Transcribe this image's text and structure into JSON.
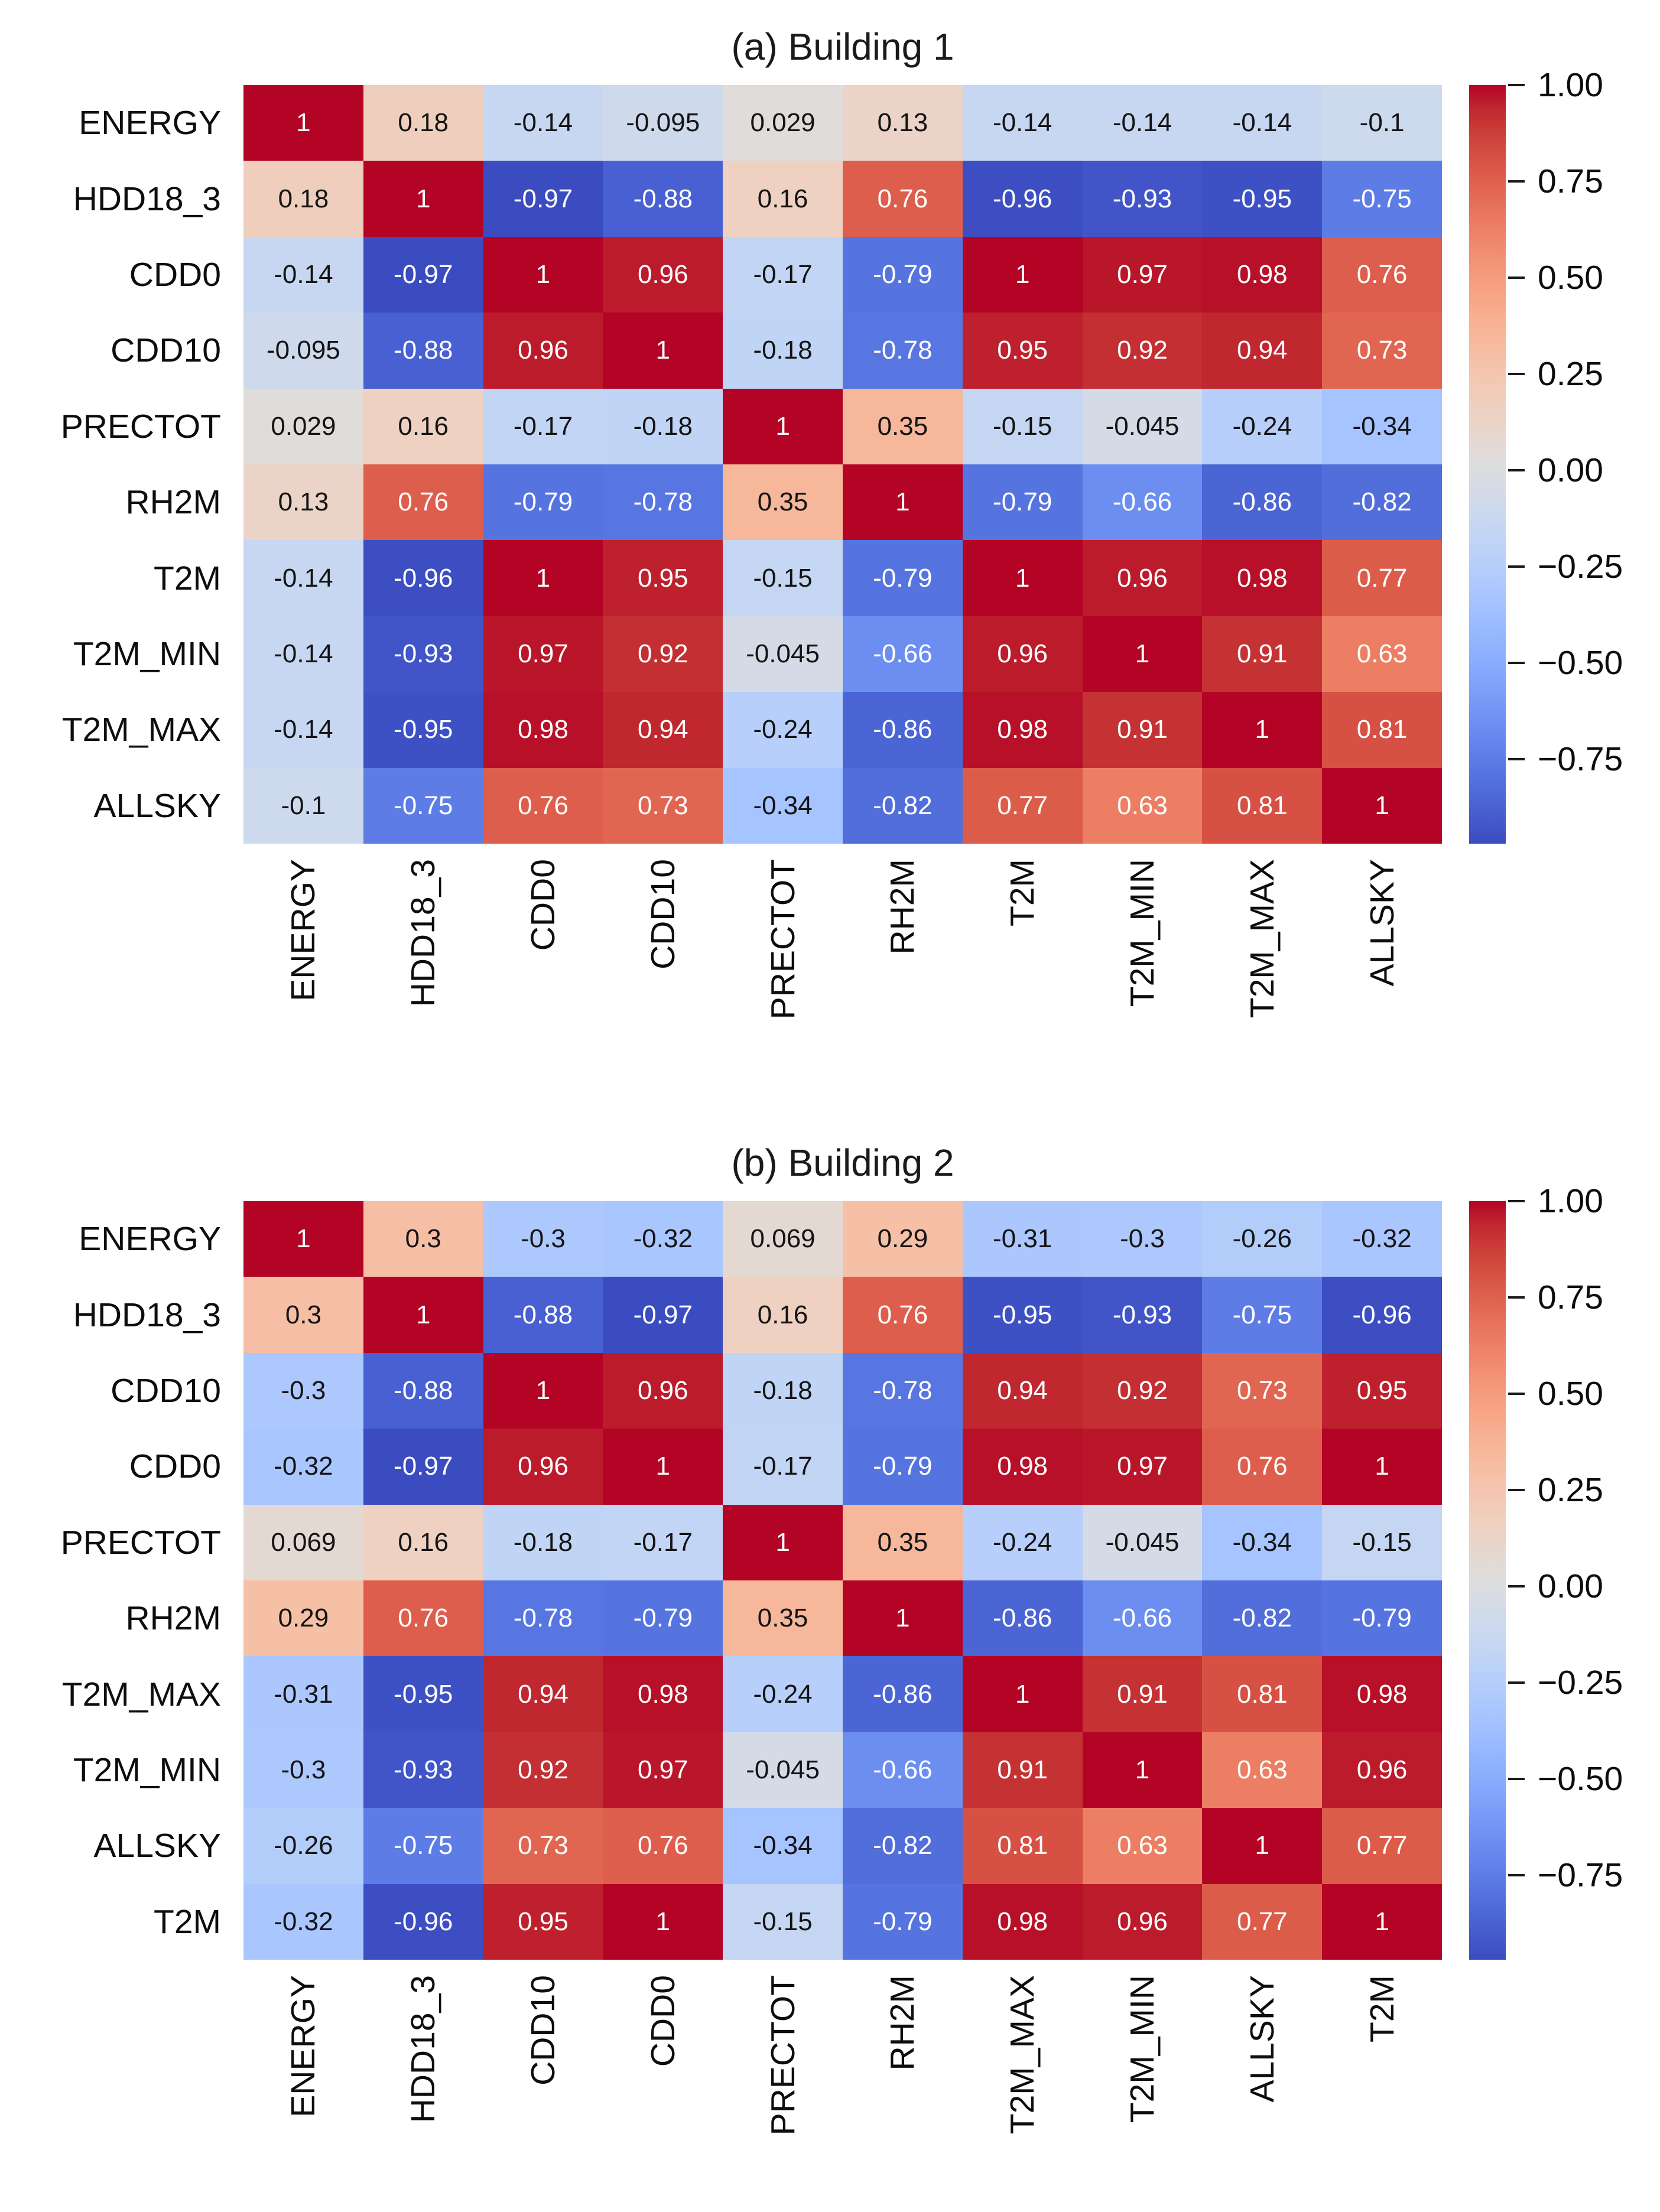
{
  "figure": {
    "background": "#ffffff",
    "axis_text_color": "#0d0d0d",
    "annotation_dark_text": "#141414",
    "annotation_light_text": "#ffffff",
    "colormap": {
      "name": "coolwarm",
      "anchors": [
        [
          59,
          76,
          192
        ],
        [
          68,
          90,
          204
        ],
        [
          77,
          104,
          215
        ],
        [
          87,
          117,
          225
        ],
        [
          98,
          130,
          234
        ],
        [
          108,
          142,
          241
        ],
        [
          119,
          154,
          247
        ],
        [
          130,
          165,
          251
        ],
        [
          141,
          176,
          254
        ],
        [
          152,
          185,
          255
        ],
        [
          163,
          194,
          255
        ],
        [
          174,
          201,
          253
        ],
        [
          184,
          208,
          249
        ],
        [
          194,
          213,
          244
        ],
        [
          204,
          217,
          238
        ],
        [
          213,
          219,
          230
        ],
        [
          221,
          221,
          221
        ],
        [
          229,
          216,
          209
        ],
        [
          236,
          211,
          197
        ],
        [
          241,
          204,
          185
        ],
        [
          245,
          196,
          173
        ],
        [
          247,
          187,
          160
        ],
        [
          247,
          177,
          148
        ],
        [
          247,
          166,
          135
        ],
        [
          244,
          154,
          123
        ],
        [
          241,
          141,
          111
        ],
        [
          236,
          127,
          99
        ],
        [
          229,
          112,
          88
        ],
        [
          222,
          96,
          77
        ],
        [
          213,
          80,
          66
        ],
        [
          203,
          62,
          56
        ],
        [
          192,
          40,
          47
        ],
        [
          180,
          4,
          38
        ]
      ]
    }
  },
  "chart_data": [
    {
      "type": "heatmap",
      "title": "(a) Building 1",
      "labels": [
        "ENERGY",
        "HDD18_3",
        "CDD0",
        "CDD10",
        "PRECTOT",
        "RH2M",
        "T2M",
        "T2M_MIN",
        "T2M_MAX",
        "ALLSKY"
      ],
      "matrix": [
        [
          1,
          0.18,
          -0.14,
          -0.095,
          0.029,
          0.13,
          -0.14,
          -0.14,
          -0.14,
          -0.1
        ],
        [
          0.18,
          1,
          -0.97,
          -0.88,
          0.16,
          0.76,
          -0.96,
          -0.93,
          -0.95,
          -0.75
        ],
        [
          -0.14,
          -0.97,
          1,
          0.96,
          -0.17,
          -0.79,
          1,
          0.97,
          0.98,
          0.76
        ],
        [
          -0.095,
          -0.88,
          0.96,
          1,
          -0.18,
          -0.78,
          0.95,
          0.92,
          0.94,
          0.73
        ],
        [
          0.029,
          0.16,
          -0.17,
          -0.18,
          1,
          0.35,
          -0.15,
          -0.045,
          -0.24,
          -0.34
        ],
        [
          0.13,
          0.76,
          -0.79,
          -0.78,
          0.35,
          1,
          -0.79,
          -0.66,
          -0.86,
          -0.82
        ],
        [
          -0.14,
          -0.96,
          1,
          0.95,
          -0.15,
          -0.79,
          1,
          0.96,
          0.98,
          0.77
        ],
        [
          -0.14,
          -0.93,
          0.97,
          0.92,
          -0.045,
          -0.66,
          0.96,
          1,
          0.91,
          0.63
        ],
        [
          -0.14,
          -0.95,
          0.98,
          0.94,
          -0.24,
          -0.86,
          0.98,
          0.91,
          1,
          0.81
        ],
        [
          -0.1,
          -0.75,
          0.76,
          0.73,
          -0.34,
          -0.82,
          0.77,
          0.63,
          0.81,
          1
        ]
      ],
      "vmin": -0.97,
      "vmax": 1,
      "legend_position": "right",
      "colorbar": {
        "tick_values": [
          1.0,
          0.75,
          0.5,
          0.25,
          0.0,
          -0.25,
          -0.5,
          -0.75
        ],
        "tick_labels": [
          "1.00",
          "0.75",
          "0.50",
          "0.25",
          "0.00",
          "−0.25",
          "−0.50",
          "−0.75"
        ]
      }
    },
    {
      "type": "heatmap",
      "title": "(b) Building 2",
      "labels": [
        "ENERGY",
        "HDD18_3",
        "CDD10",
        "CDD0",
        "PRECTOT",
        "RH2M",
        "T2M_MAX",
        "T2M_MIN",
        "ALLSKY",
        "T2M"
      ],
      "matrix": [
        [
          1,
          0.3,
          -0.3,
          -0.32,
          0.069,
          0.29,
          -0.31,
          -0.3,
          -0.26,
          -0.32
        ],
        [
          0.3,
          1,
          -0.88,
          -0.97,
          0.16,
          0.76,
          -0.95,
          -0.93,
          -0.75,
          -0.96
        ],
        [
          -0.3,
          -0.88,
          1,
          0.96,
          -0.18,
          -0.78,
          0.94,
          0.92,
          0.73,
          0.95
        ],
        [
          -0.32,
          -0.97,
          0.96,
          1,
          -0.17,
          -0.79,
          0.98,
          0.97,
          0.76,
          1
        ],
        [
          0.069,
          0.16,
          -0.18,
          -0.17,
          1,
          0.35,
          -0.24,
          -0.045,
          -0.34,
          -0.15
        ],
        [
          0.29,
          0.76,
          -0.78,
          -0.79,
          0.35,
          1,
          -0.86,
          -0.66,
          -0.82,
          -0.79
        ],
        [
          -0.31,
          -0.95,
          0.94,
          0.98,
          -0.24,
          -0.86,
          1,
          0.91,
          0.81,
          0.98
        ],
        [
          -0.3,
          -0.93,
          0.92,
          0.97,
          -0.045,
          -0.66,
          0.91,
          1,
          0.63,
          0.96
        ],
        [
          -0.26,
          -0.75,
          0.73,
          0.76,
          -0.34,
          -0.82,
          0.81,
          0.63,
          1,
          0.77
        ],
        [
          -0.32,
          -0.96,
          0.95,
          1,
          -0.15,
          -0.79,
          0.98,
          0.96,
          0.77,
          1
        ]
      ],
      "vmin": -0.97,
      "vmax": 1,
      "legend_position": "right",
      "colorbar": {
        "tick_values": [
          1.0,
          0.75,
          0.5,
          0.25,
          0.0,
          -0.25,
          -0.5,
          -0.75
        ],
        "tick_labels": [
          "1.00",
          "0.75",
          "0.50",
          "0.25",
          "0.00",
          "−0.25",
          "−0.50",
          "−0.75"
        ]
      }
    }
  ]
}
